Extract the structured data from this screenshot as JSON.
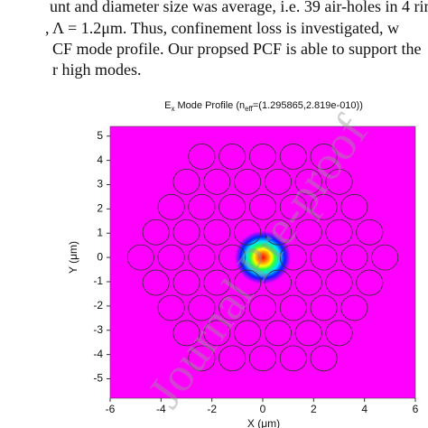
{
  "text_lines": [
    "unt and diameter size was average, i.e. 39 air-holes in 4 rin",
    ", Λ = 1.2μm. Thus, confinement loss is investigated, w",
    "CF mode profile. Our propsed PCF is able to support the",
    "r high modes."
  ],
  "figure": {
    "title": {
      "field": "E",
      "field_subscript": "x",
      "middle": " Mode Profile (n",
      "index_subscript": "eff",
      "end": "=(1.295865,2.819e-010))"
    },
    "xlabel": "X (μm)",
    "ylabel": "Y (μm)",
    "xlim": [
      -6,
      6
    ],
    "ylim": [
      -5.8,
      5.4
    ],
    "xticks": [
      -6,
      -4,
      -2,
      0,
      2,
      4,
      6
    ],
    "yticks": [
      5,
      4,
      3,
      2,
      1,
      0,
      -1,
      -2,
      -3,
      -4,
      -5
    ]
  },
  "watermark": "Journal Pre-proof"
}
